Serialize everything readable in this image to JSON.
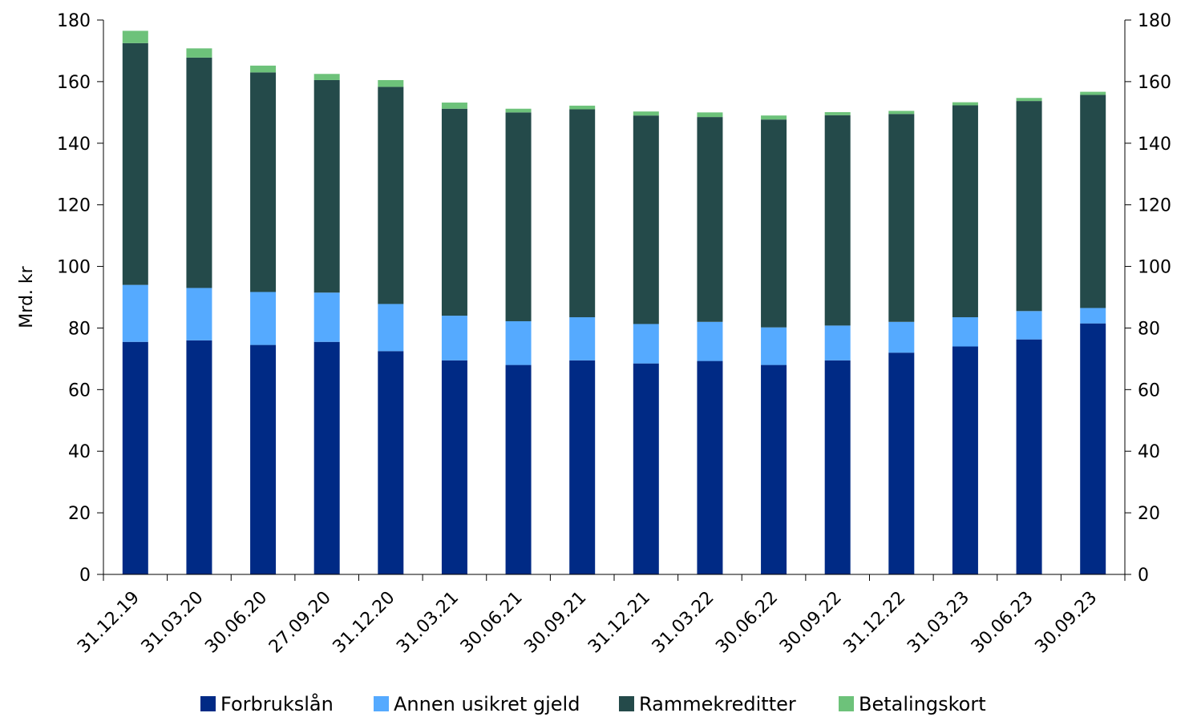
{
  "chart_data": {
    "type": "bar",
    "stacked": true,
    "categories": [
      "31.12.19",
      "31.03.20",
      "30.06.20",
      "27.09.20",
      "31.12.20",
      "31.03.21",
      "30.06.21",
      "30.09.21",
      "31.12.21",
      "31.03.22",
      "30.06.22",
      "30.09.22",
      "31.12.22",
      "31.03.23",
      "30.06.23",
      "30.09.23"
    ],
    "series": [
      {
        "name": "Forbrukslån",
        "color": "#002a85",
        "values": [
          75.5,
          76.0,
          74.5,
          75.5,
          72.5,
          69.5,
          68.0,
          69.5,
          68.5,
          69.3,
          68.0,
          69.5,
          72.0,
          74.0,
          76.3,
          81.5
        ]
      },
      {
        "name": "Annen usikret gjeld",
        "color": "#55aaff",
        "values": [
          18.5,
          17.0,
          17.2,
          16.0,
          15.3,
          14.5,
          14.2,
          14.0,
          12.8,
          12.7,
          12.2,
          11.3,
          10.0,
          9.5,
          9.2,
          5.0
        ]
      },
      {
        "name": "Rammekreditter",
        "color": "#244a4a",
        "values": [
          78.5,
          74.8,
          71.3,
          69.0,
          70.5,
          67.2,
          67.8,
          67.5,
          67.7,
          66.5,
          67.5,
          68.3,
          67.5,
          68.8,
          68.2,
          69.2
        ]
      },
      {
        "name": "Betalingskort",
        "color": "#6dc27a",
        "values": [
          4.0,
          3.0,
          2.2,
          2.0,
          2.2,
          2.0,
          1.2,
          1.2,
          1.3,
          1.5,
          1.3,
          1.0,
          1.0,
          1.0,
          1.0,
          1.0
        ]
      }
    ],
    "ylabel": "Mrd. kr",
    "ylim": [
      0,
      180
    ],
    "yticks": [
      0,
      20,
      40,
      60,
      80,
      100,
      120,
      140,
      160,
      180
    ],
    "secondary_y_axis": true,
    "grid": false,
    "legend": "bottom-center"
  }
}
